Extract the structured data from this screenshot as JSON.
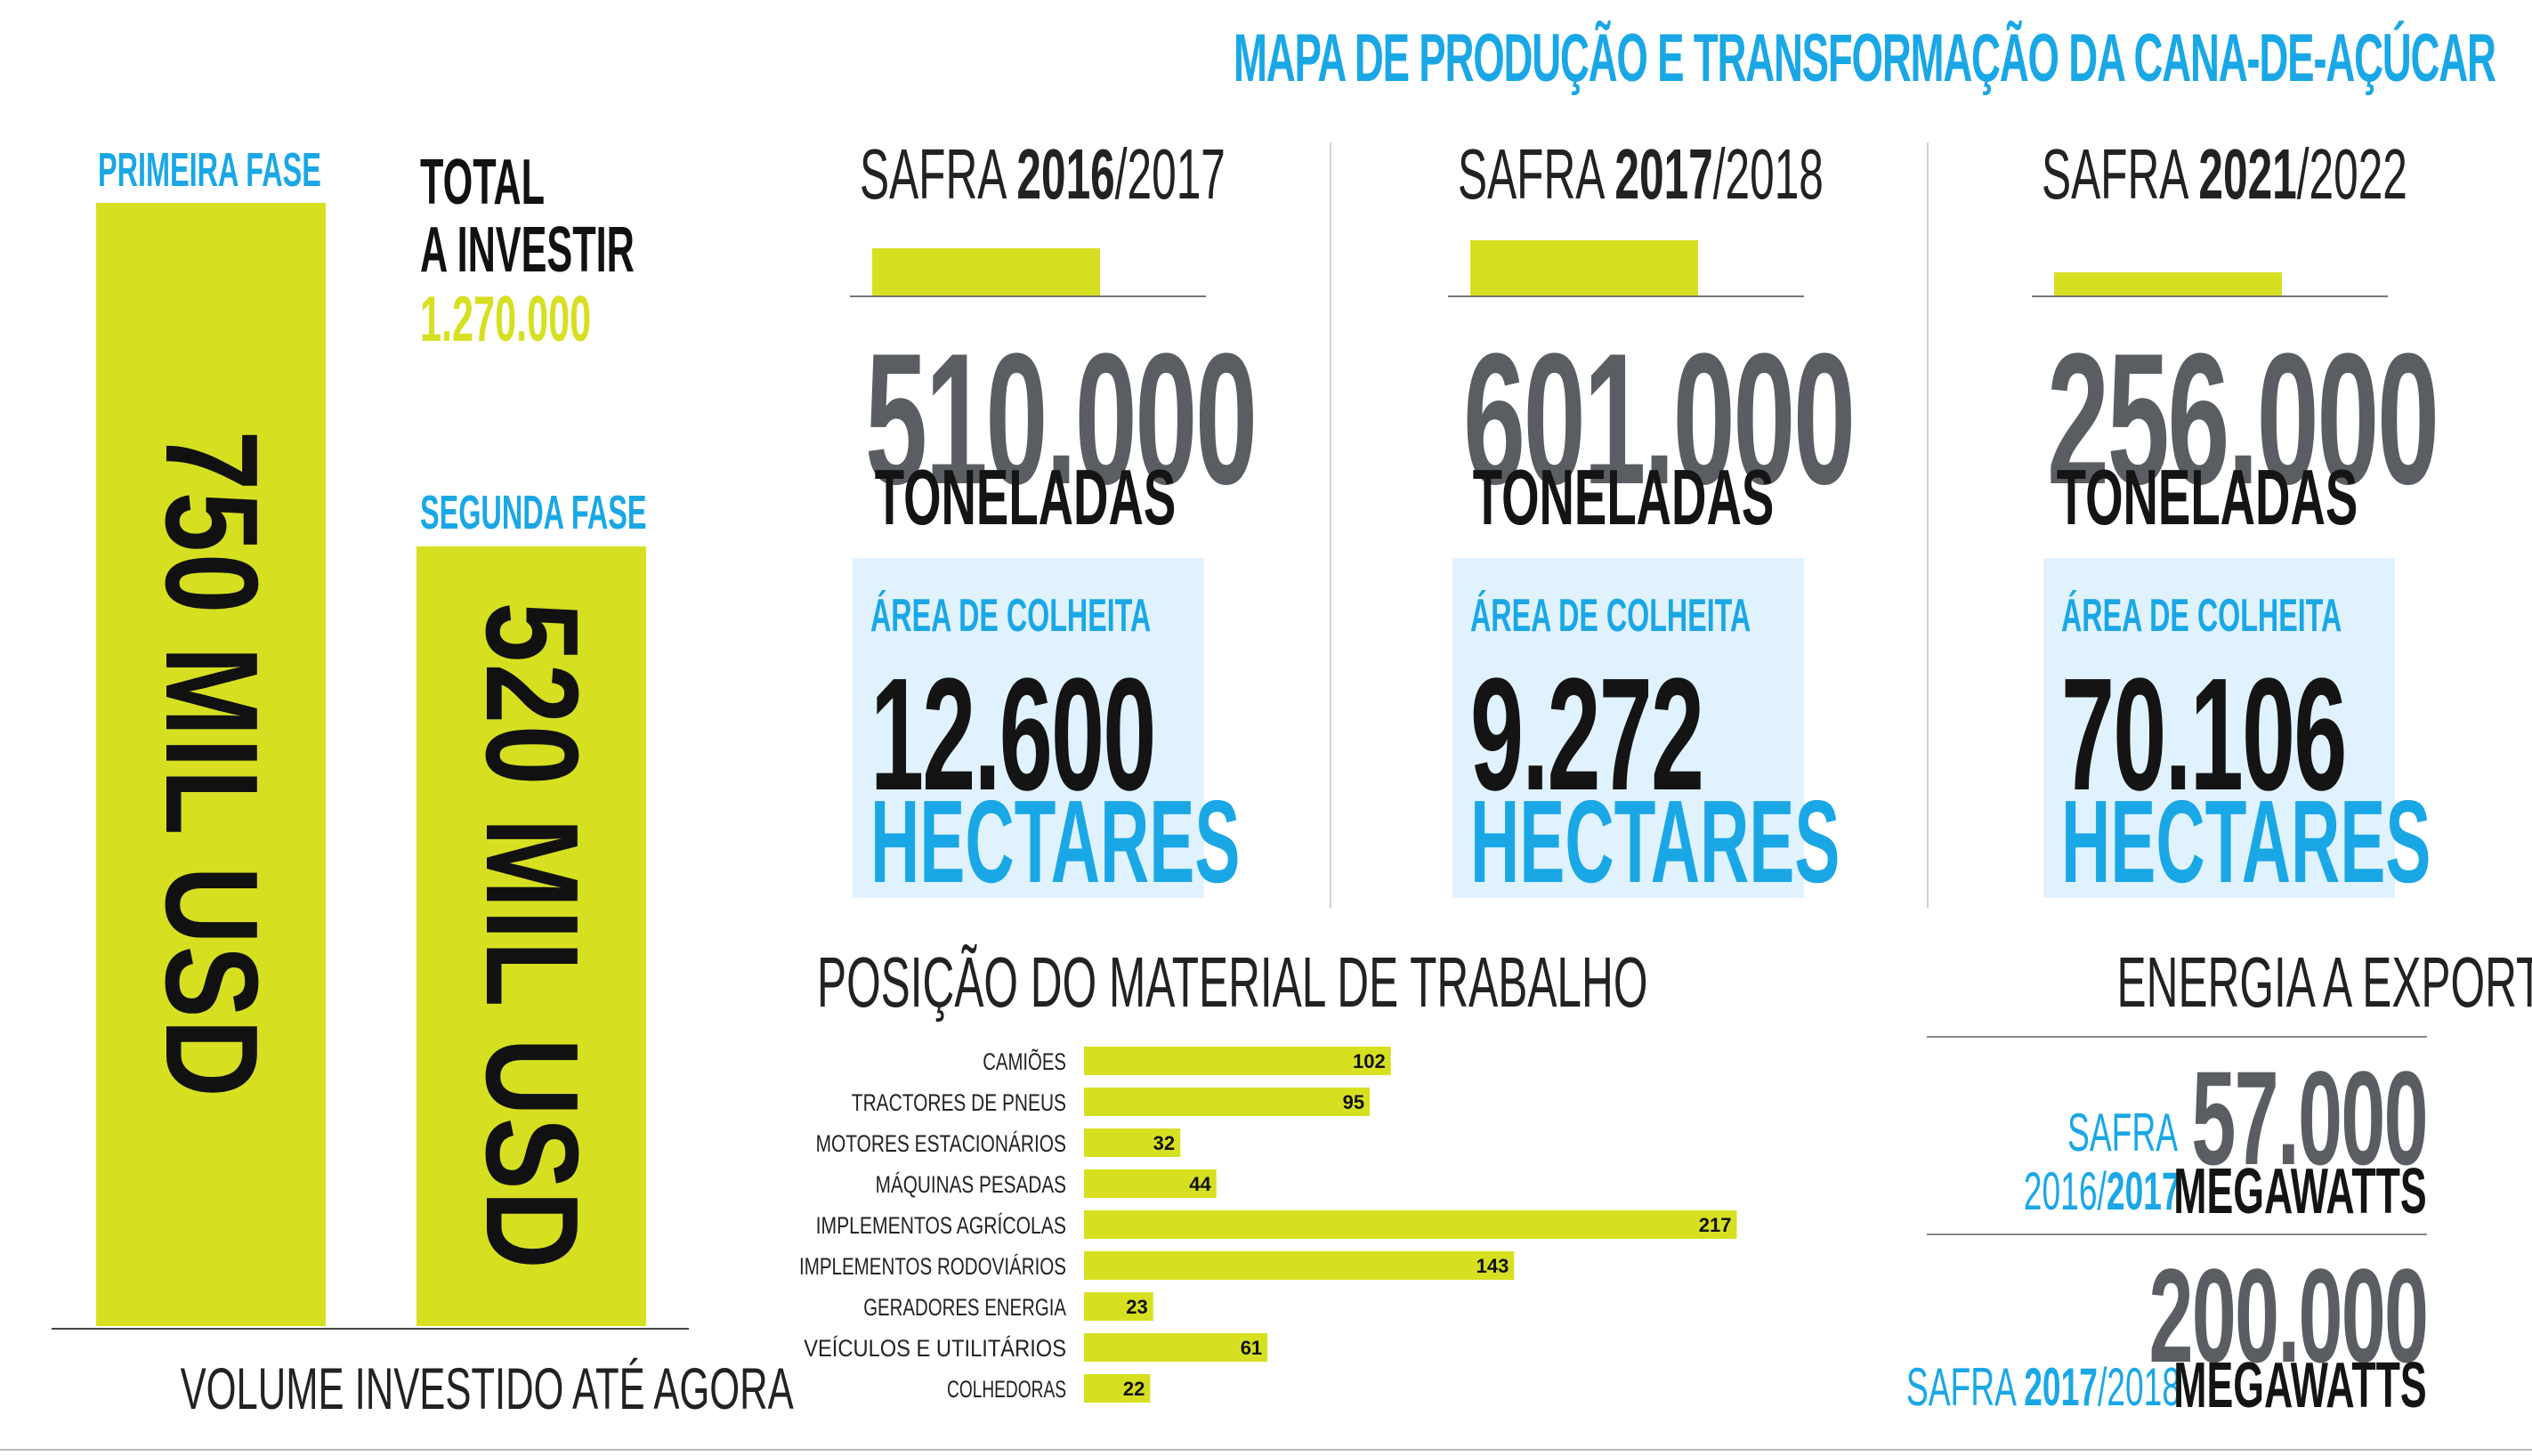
{
  "main_title": "MAPA DE PRODUÇÃO E TRANSFORMAÇÃO DA CANA-DE-AÇÚCAR",
  "investment": {
    "phase1_label": "PRIMEIRA FASE",
    "phase1_value": "750 MIL USD",
    "phase2_label": "SEGUNDA FASE",
    "phase2_value": "520 MIL USD",
    "total_line1": "TOTAL",
    "total_line2": "A INVESTIR",
    "total_value": "1.270.000",
    "footer": "VOLUME INVESTIDO ATÉ AGORA"
  },
  "safras": [
    {
      "prefix": "SAFRA ",
      "year_bold": "2016",
      "year_rest": "/2017",
      "tonnes_text": "510.000",
      "tonnes_value": 510000,
      "tonnes_unit": "TONELADAS",
      "area_label": "ÁREA DE COLHEITA",
      "area_value": "12.600",
      "area_unit": "HECTARES"
    },
    {
      "prefix": "SAFRA ",
      "year_bold": "2017",
      "year_rest": "/2018",
      "tonnes_text": "601.000",
      "tonnes_value": 601000,
      "tonnes_unit": "TONELADAS",
      "area_label": "ÁREA DE COLHEITA",
      "area_value": "9.272",
      "area_unit": "HECTARES"
    },
    {
      "prefix": "SAFRA ",
      "year_bold": "2021",
      "year_rest": "/2022",
      "tonnes_text": "256.000",
      "tonnes_value": 256000,
      "tonnes_unit": "TONELADAS",
      "area_label": "ÁREA DE COLHEITA",
      "area_value": "70.106",
      "area_unit": "HECTARES"
    }
  ],
  "energy": {
    "title": "ENERGIA A EXPORTAR",
    "items": [
      {
        "safra_prefix": "SAFRA",
        "year_line": "2016/",
        "year_bold": "2017",
        "value": "57.000",
        "unit": "MEGAWATTS"
      },
      {
        "safra_prefix": "SAFRA ",
        "year_bold": "2017",
        "year_rest": "/2018",
        "value": "200.000",
        "unit": "MEGAWATTS"
      }
    ]
  },
  "chart_data": {
    "type": "bar",
    "orientation": "horizontal",
    "title": "POSIÇÃO DO MATERIAL DE TRABALHO",
    "categories": [
      "CAMIÕES",
      "TRACTORES DE PNEUS",
      "MOTORES ESTACIONÁRIOS",
      "MÁQUINAS PESADAS",
      "IMPLEMENTOS AGRÍCOLAS",
      "IMPLEMENTOS RODOVIÁRIOS",
      "GERADORES ENERGIA",
      "VEÍCULOS E UTILITÁRIOS",
      "COLHEDORAS"
    ],
    "values": [
      102,
      95,
      32,
      44,
      217,
      143,
      23,
      61,
      22
    ],
    "bar_color": "#d6e021",
    "data_labels": true,
    "grid": false
  },
  "colors": {
    "accent": "#d6e021",
    "blue": "#1aa7e6",
    "light_blue_box": "#e0f2fd",
    "gray_number": "#5a5e63"
  }
}
